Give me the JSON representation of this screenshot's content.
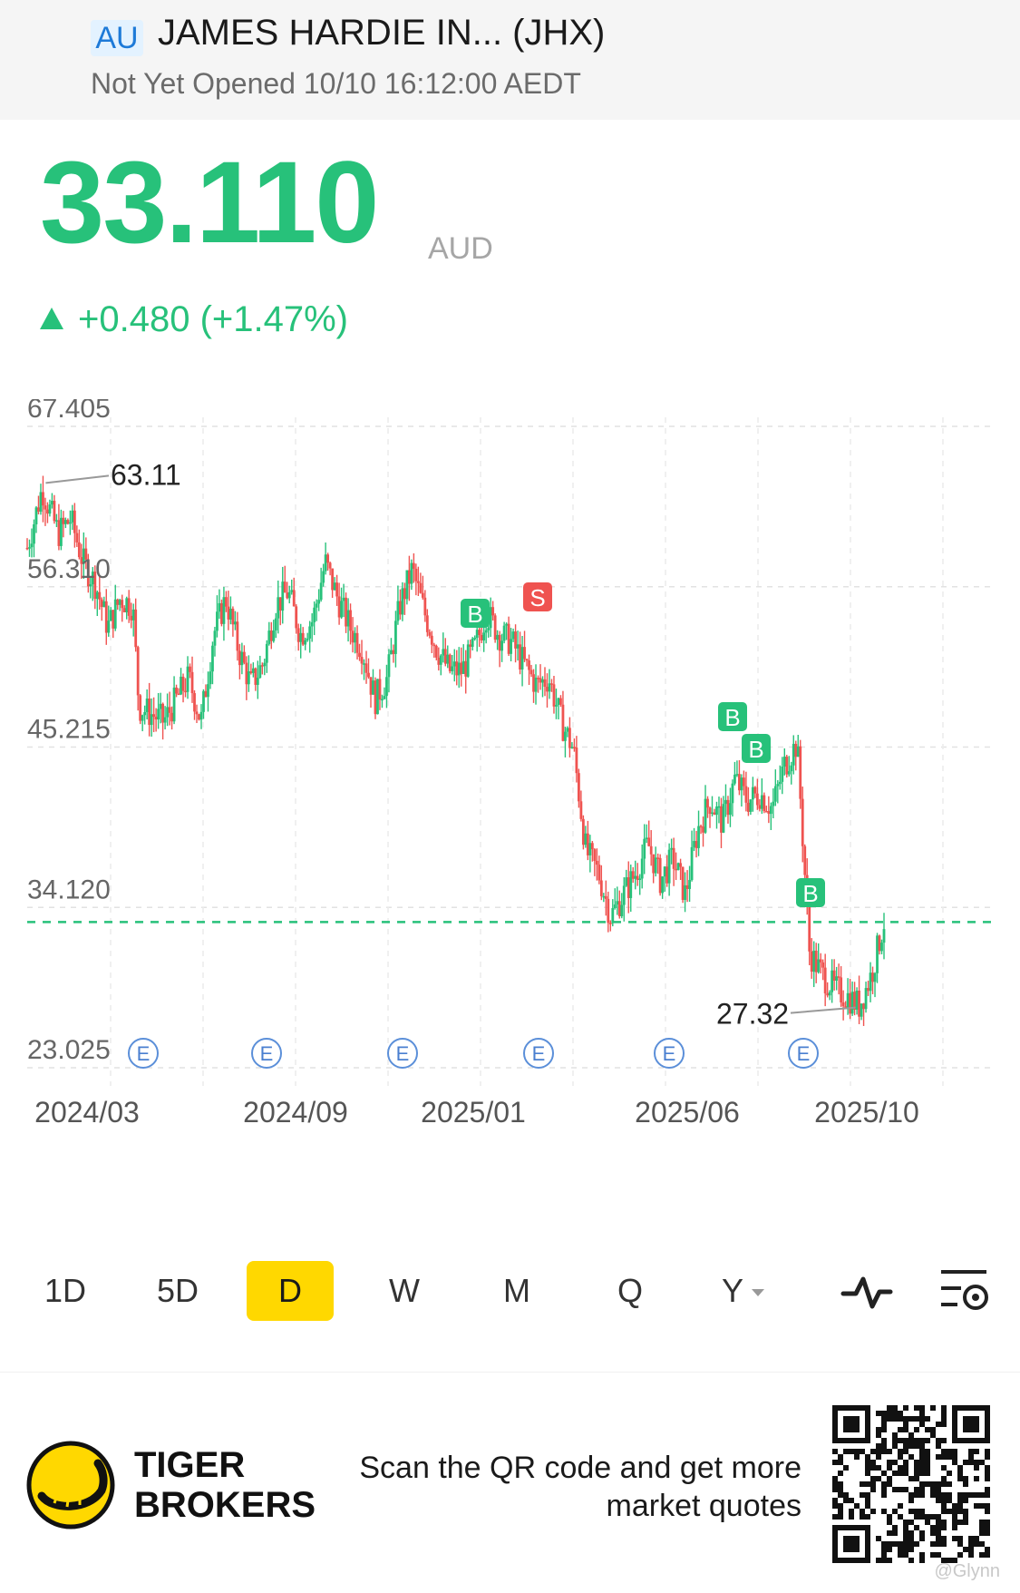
{
  "header": {
    "market_badge": "AU",
    "title": "JAMES HARDIE IN... (JHX)",
    "status": "Not Yet Opened 10/10 16:12:00 AEDT"
  },
  "quote": {
    "price": "33.110",
    "currency": "AUD",
    "change": "+0.480 (+1.47%)",
    "color_up": "#27c17a"
  },
  "chart_data": {
    "type": "candlestick",
    "y_ticks": [
      "67.405",
      "56.310",
      "45.215",
      "34.120",
      "23.025"
    ],
    "x_ticks": [
      "2024/03",
      "2024/09",
      "2025/01",
      "2025/06",
      "2025/10"
    ],
    "ylim": [
      23.025,
      67.405
    ],
    "current_price_line": 33.11,
    "annotations": [
      {
        "label": "63.11",
        "type": "high",
        "value": 63.11
      },
      {
        "label": "27.32",
        "type": "low",
        "value": 27.32
      }
    ],
    "trade_markers": [
      "B",
      "S",
      "B",
      "B",
      "B"
    ],
    "earnings_markers": [
      "E",
      "E",
      "E",
      "E",
      "E",
      "E"
    ],
    "colors": {
      "up": "#27c17a",
      "down": "#ef5350"
    },
    "series_path": [
      [
        0,
        59
      ],
      [
        0.6,
        61
      ],
      [
        1.2,
        63.1
      ],
      [
        2.5,
        60
      ],
      [
        3.5,
        61
      ],
      [
        4.5,
        58
      ],
      [
        5.5,
        56.5
      ],
      [
        6.5,
        53.5
      ],
      [
        7.5,
        55.5
      ],
      [
        8.5,
        55
      ],
      [
        9,
        48
      ],
      [
        10,
        47.5
      ],
      [
        11,
        47
      ],
      [
        12,
        48.5
      ],
      [
        13,
        50
      ],
      [
        14,
        47
      ],
      [
        15,
        53
      ],
      [
        16,
        55.5
      ],
      [
        17,
        52
      ],
      [
        18,
        49.5
      ],
      [
        19,
        51
      ],
      [
        20,
        55
      ],
      [
        21,
        56
      ],
      [
        22,
        53
      ],
      [
        23,
        54
      ],
      [
        24,
        58
      ],
      [
        25,
        55.5
      ],
      [
        26,
        53.5
      ],
      [
        27,
        52
      ],
      [
        28,
        48.5
      ],
      [
        29,
        50
      ],
      [
        30,
        55
      ],
      [
        31,
        57.5
      ],
      [
        32,
        54.5
      ],
      [
        33,
        52
      ],
      [
        34,
        50.5
      ],
      [
        35,
        50.5
      ],
      [
        36,
        52
      ],
      [
        37,
        54.5
      ],
      [
        38,
        53
      ],
      [
        39,
        52.5
      ],
      [
        40,
        51
      ],
      [
        41,
        49.5
      ],
      [
        42,
        50
      ],
      [
        43,
        47
      ],
      [
        44,
        45
      ],
      [
        45,
        38
      ],
      [
        46,
        36.5
      ],
      [
        47,
        33.5
      ],
      [
        48,
        35
      ],
      [
        49,
        36.5
      ],
      [
        50,
        38.5
      ],
      [
        51,
        36
      ],
      [
        52,
        37.5
      ],
      [
        53,
        35
      ],
      [
        54,
        39.5
      ],
      [
        55,
        41.5
      ],
      [
        56,
        40
      ],
      [
        57,
        43
      ],
      [
        58,
        41.5
      ],
      [
        59,
        42
      ],
      [
        60,
        41
      ],
      [
        61,
        44
      ],
      [
        62,
        45.5
      ],
      [
        63,
        31
      ],
      [
        64,
        29.5
      ],
      [
        65,
        28.5
      ],
      [
        66,
        28
      ],
      [
        67,
        27.32
      ],
      [
        68,
        29.5
      ],
      [
        69,
        33.11
      ]
    ]
  },
  "periods": {
    "items": [
      "1D",
      "5D",
      "D",
      "W",
      "M",
      "Q",
      "Y"
    ],
    "active": "D"
  },
  "footer": {
    "brand_line1": "TIGER",
    "brand_line2": "BROKERS",
    "promo_line1": "Scan the QR code and get more",
    "promo_line2": "market quotes",
    "watermark": "@Glynn"
  }
}
